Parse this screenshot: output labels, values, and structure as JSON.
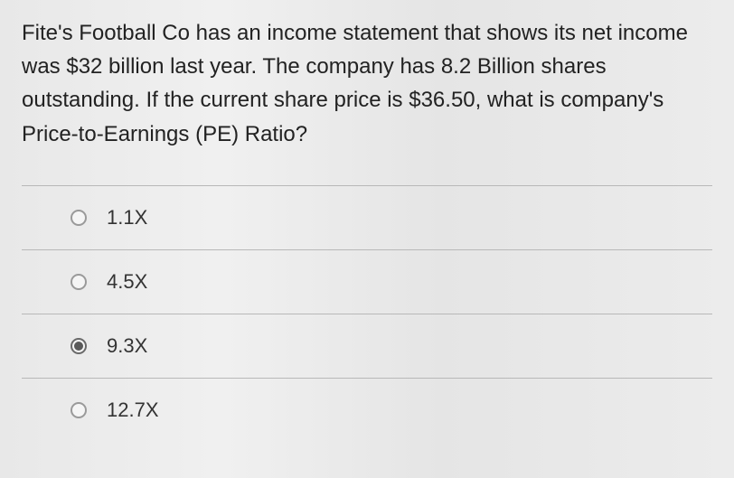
{
  "question": {
    "text": "Fite's Football Co has an income statement that shows its net income was $32 billion last year.  The company has 8.2 Billion shares outstanding.  If the current share price is $36.50, what is company's Price-to-Earnings (PE) Ratio?"
  },
  "options": [
    {
      "label": "1.1X",
      "selected": false
    },
    {
      "label": "4.5X",
      "selected": false
    },
    {
      "label": "9.3X",
      "selected": true
    },
    {
      "label": "12.7X",
      "selected": false
    }
  ],
  "style": {
    "question_fontsize": 24,
    "option_fontsize": 22,
    "text_color": "#2a2a2a",
    "divider_color": "#b8b8b8",
    "radio_border": "#9a9a9a",
    "radio_fill": "#5a5a5a",
    "background": "#ececec"
  }
}
